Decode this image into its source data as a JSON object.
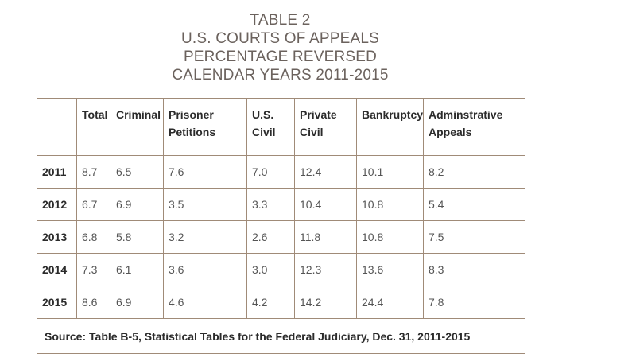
{
  "title": {
    "line1": "TABLE 2",
    "line2": "U.S. COURTS OF APPEALS",
    "line3": "PERCENTAGE REVERSED",
    "line4": "CALENDAR YEARS 2011-2015"
  },
  "table": {
    "columns": [
      {
        "line1": "",
        "line2": ""
      },
      {
        "line1": "Total",
        "line2": ""
      },
      {
        "line1": "Criminal",
        "line2": ""
      },
      {
        "line1": "Prisoner",
        "line2": "Petitions"
      },
      {
        "line1": "U.S.",
        "line2": "Civil"
      },
      {
        "line1": "Private",
        "line2": "Civil"
      },
      {
        "line1": "Bankruptcy",
        "line2": ""
      },
      {
        "line1": "Adminstrative",
        "line2": "Appeals"
      }
    ],
    "rows": [
      {
        "year": "2011",
        "values": [
          "8.7",
          "6.5",
          "7.6",
          "7.0",
          "12.4",
          "10.1",
          "8.2"
        ]
      },
      {
        "year": "2012",
        "values": [
          "6.7",
          "6.9",
          "3.5",
          "3.3",
          "10.4",
          "10.8",
          "5.4"
        ]
      },
      {
        "year": "2013",
        "values": [
          "6.8",
          "5.8",
          "3.2",
          "2.6",
          "11.8",
          "10.8",
          "7.5"
        ]
      },
      {
        "year": "2014",
        "values": [
          "7.3",
          "6.1",
          "3.6",
          "3.0",
          "12.3",
          "13.6",
          "8.3"
        ]
      },
      {
        "year": "2015",
        "values": [
          "8.6",
          "6.9",
          "4.6",
          "4.2",
          "14.2",
          "24.4",
          "7.8"
        ]
      }
    ],
    "source": "Source: Table B-5, Statistical Tables for the Federal Judiciary, Dec. 31, 2011-2015"
  },
  "colors": {
    "title": "#6b625d",
    "border": "#a08b78"
  }
}
